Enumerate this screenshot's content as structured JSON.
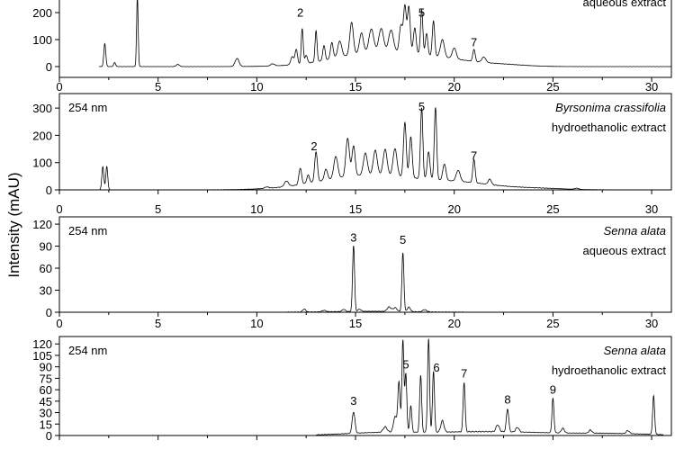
{
  "chart_data": {
    "type": "line",
    "ylabel": "Intensity (mAU)",
    "xlim": [
      0,
      31
    ],
    "x_ticks": [
      "0",
      "5",
      "10",
      "15",
      "20",
      "25",
      "30"
    ],
    "panels": [
      {
        "wavelength": "",
        "sample": "",
        "extract": "aqueous extract",
        "yticks": [
          "0",
          "100",
          "200"
        ],
        "ylim": [
          0,
          260
        ],
        "peaks": [
          [
            2.3,
            85,
            0.05
          ],
          [
            2.8,
            15,
            0.05
          ],
          [
            3.95,
            255,
            0.04
          ],
          [
            6.0,
            8,
            0.08
          ],
          [
            9.0,
            30,
            0.1
          ],
          [
            10.8,
            8,
            0.1
          ],
          [
            11.8,
            30,
            0.08
          ],
          [
            12.0,
            55,
            0.06
          ],
          [
            12.3,
            130,
            0.05
          ],
          [
            12.5,
            30,
            0.06
          ],
          [
            13.0,
            115,
            0.05
          ],
          [
            13.4,
            55,
            0.06
          ],
          [
            13.8,
            60,
            0.07
          ],
          [
            14.2,
            60,
            0.1
          ],
          [
            14.8,
            120,
            0.09
          ],
          [
            15.3,
            75,
            0.1
          ],
          [
            15.8,
            85,
            0.12
          ],
          [
            16.3,
            85,
            0.12
          ],
          [
            16.8,
            80,
            0.12
          ],
          [
            17.3,
            100,
            0.08
          ],
          [
            17.5,
            170,
            0.07
          ],
          [
            17.7,
            170,
            0.07
          ],
          [
            18.0,
            95,
            0.07
          ],
          [
            18.35,
            165,
            0.06
          ],
          [
            18.6,
            80,
            0.06
          ],
          [
            18.95,
            130,
            0.06
          ],
          [
            19.4,
            65,
            0.1
          ],
          [
            20.0,
            40,
            0.1
          ],
          [
            21.0,
            45,
            0.06
          ],
          [
            21.5,
            20,
            0.1
          ]
        ],
        "humps": [
          [
            16.3,
            55,
            2.2
          ],
          [
            19.8,
            15,
            1.5
          ],
          [
            22.5,
            6,
            1.2
          ]
        ],
        "peak_labels": [
          {
            "label": "2",
            "x": 12.2,
            "y": 185
          },
          {
            "label": "5",
            "x": 18.35,
            "y": 185
          },
          {
            "label": "7",
            "x": 21.0,
            "y": 75
          }
        ],
        "x_end": 31
      },
      {
        "wavelength": "254 nm",
        "sample": "Byrsonima crassifolia",
        "extract": "hydroethanolic extract",
        "yticks": [
          "0",
          "100",
          "200",
          "300"
        ],
        "ylim": [
          0,
          340
        ],
        "peaks": [
          [
            2.2,
            85,
            0.05
          ],
          [
            2.4,
            85,
            0.05
          ],
          [
            10.5,
            5,
            0.1
          ],
          [
            11.5,
            20,
            0.1
          ],
          [
            12.2,
            60,
            0.07
          ],
          [
            12.6,
            30,
            0.07
          ],
          [
            13.0,
            110,
            0.07
          ],
          [
            13.5,
            40,
            0.08
          ],
          [
            14.0,
            80,
            0.1
          ],
          [
            14.6,
            140,
            0.09
          ],
          [
            14.9,
            110,
            0.08
          ],
          [
            15.5,
            80,
            0.1
          ],
          [
            16.0,
            90,
            0.1
          ],
          [
            16.5,
            95,
            0.1
          ],
          [
            17.0,
            100,
            0.1
          ],
          [
            17.5,
            200,
            0.07
          ],
          [
            17.8,
            150,
            0.07
          ],
          [
            18.35,
            260,
            0.06
          ],
          [
            18.7,
            100,
            0.07
          ],
          [
            19.05,
            265,
            0.06
          ],
          [
            19.5,
            60,
            0.08
          ],
          [
            20.2,
            40,
            0.1
          ],
          [
            21.0,
            85,
            0.06
          ],
          [
            21.8,
            20,
            0.08
          ],
          [
            26.2,
            4,
            0.1
          ]
        ],
        "humps": [
          [
            15.8,
            55,
            2.5
          ],
          [
            20.5,
            20,
            1.6
          ],
          [
            24.0,
            6,
            1.5
          ]
        ],
        "peak_labels": [
          {
            "label": "2",
            "x": 12.9,
            "y": 145
          },
          {
            "label": "5",
            "x": 18.35,
            "y": 290
          },
          {
            "label": "7",
            "x": 21.0,
            "y": 110
          }
        ],
        "x_end": 31
      },
      {
        "wavelength": "254 nm",
        "sample": "Senna alata",
        "extract": "aqueous extract",
        "yticks": [
          "0",
          "30",
          "60",
          "90",
          "120"
        ],
        "ylim": [
          0,
          125
        ],
        "peaks": [
          [
            12.4,
            4,
            0.08
          ],
          [
            13.4,
            2,
            0.1
          ],
          [
            14.4,
            3,
            0.08
          ],
          [
            14.9,
            90,
            0.05
          ],
          [
            15.2,
            3,
            0.08
          ],
          [
            16.7,
            6,
            0.1
          ],
          [
            17.0,
            5,
            0.1
          ],
          [
            17.4,
            80,
            0.05
          ],
          [
            17.7,
            6,
            0.08
          ],
          [
            18.5,
            3,
            0.1
          ]
        ],
        "humps": [
          [
            15.8,
            1.2,
            2.0
          ]
        ],
        "peak_labels": [
          {
            "label": "3",
            "x": 14.9,
            "y": 96
          },
          {
            "label": "5",
            "x": 17.4,
            "y": 93
          }
        ],
        "x_start": 11.5,
        "x_end": 20.5
      },
      {
        "wavelength": "254 nm",
        "sample": "Senna alata",
        "extract": "hydroethanolic extract",
        "yticks": [
          "0",
          "15",
          "30",
          "45",
          "60",
          "75",
          "90",
          "105",
          "120"
        ],
        "ylim": [
          0,
          125
        ],
        "peaks": [
          [
            14.9,
            28,
            0.07
          ],
          [
            16.5,
            7,
            0.1
          ],
          [
            17.0,
            20,
            0.08
          ],
          [
            17.2,
            65,
            0.06
          ],
          [
            17.4,
            120,
            0.05
          ],
          [
            17.55,
            75,
            0.05
          ],
          [
            17.8,
            35,
            0.05
          ],
          [
            18.3,
            75,
            0.05
          ],
          [
            18.7,
            122,
            0.05
          ],
          [
            18.95,
            80,
            0.05
          ],
          [
            19.4,
            15,
            0.08
          ],
          [
            20.5,
            65,
            0.05
          ],
          [
            22.2,
            9,
            0.08
          ],
          [
            22.7,
            30,
            0.06
          ],
          [
            23.2,
            6,
            0.08
          ],
          [
            25.0,
            45,
            0.05
          ],
          [
            25.5,
            6,
            0.08
          ],
          [
            26.9,
            4,
            0.08
          ],
          [
            28.8,
            4,
            0.08
          ],
          [
            30.1,
            50,
            0.05
          ]
        ],
        "humps": [
          [
            16.5,
            4,
            2.0
          ],
          [
            21.0,
            4,
            2.0
          ],
          [
            24.0,
            2.5,
            2.0
          ],
          [
            28.0,
            2.5,
            2.0
          ]
        ],
        "peak_labels": [
          {
            "label": "3",
            "x": 14.9,
            "y": 40
          },
          {
            "label": "5",
            "x": 17.55,
            "y": 88
          },
          {
            "label": "6",
            "x": 19.1,
            "y": 84
          },
          {
            "label": "7",
            "x": 20.5,
            "y": 76
          },
          {
            "label": "8",
            "x": 22.7,
            "y": 42
          },
          {
            "label": "9",
            "x": 25.0,
            "y": 55
          }
        ],
        "x_start": 13.0,
        "x_end": 30.6
      }
    ]
  }
}
